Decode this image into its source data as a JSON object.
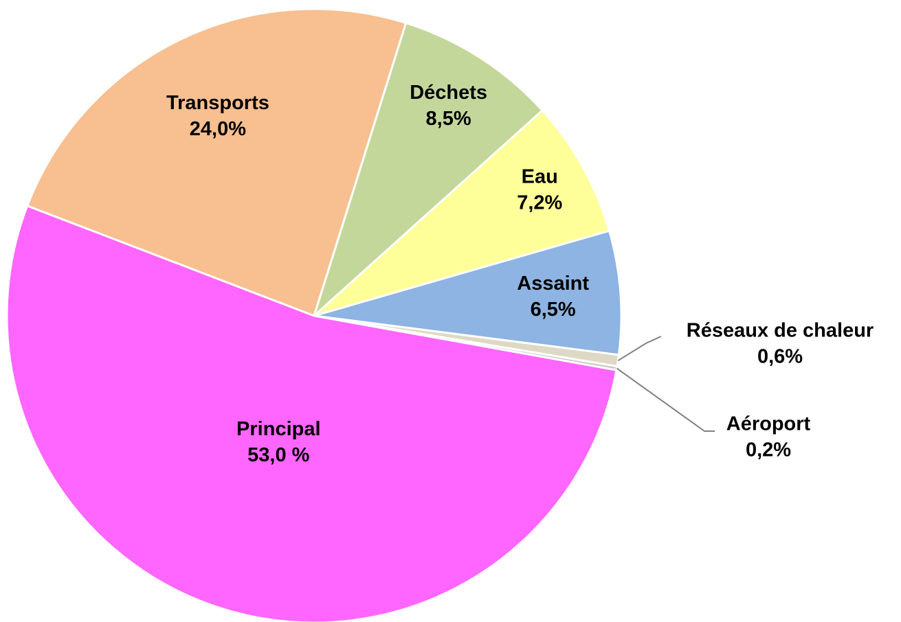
{
  "chart_data": {
    "type": "pie",
    "categories": [
      "Transports",
      "Déchets",
      "Eau",
      "Assaint",
      "Réseaux de chaleur",
      "Aéroport",
      "Principal"
    ],
    "values": [
      24.0,
      8.5,
      7.2,
      6.5,
      0.6,
      0.2,
      53.0
    ],
    "value_labels": [
      "24,0%",
      "8,5%",
      "7,2%",
      "6,5%",
      "0,6%",
      "0,2%",
      "53,0 %"
    ],
    "colors": [
      "#f8bf90",
      "#c4d79b",
      "#ffff99",
      "#8db4e2",
      "#ddd9c4",
      "#c8c8c8",
      "#ff66ff"
    ]
  }
}
